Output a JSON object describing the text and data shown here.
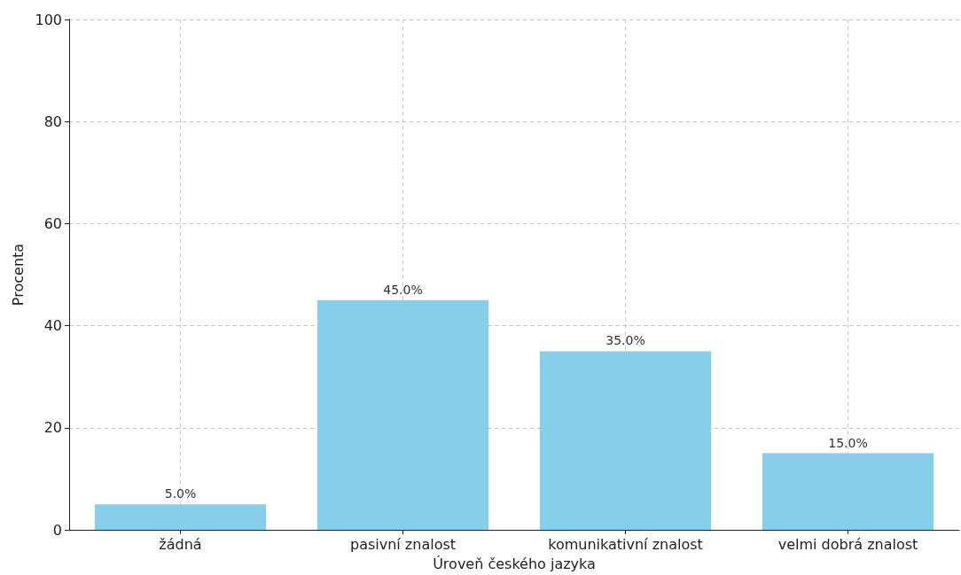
{
  "chart_data": {
    "type": "bar",
    "xlabel": "Úroveň českého jazyka",
    "ylabel": "Procenta",
    "categories": [
      "žádná",
      "pasivní znalost",
      "komunikativní znalost",
      "velmi dobrá znalost"
    ],
    "values": [
      5,
      45,
      35,
      15
    ],
    "color": "#87ceeb",
    "value_labels": [
      "5.0%",
      "45.0%",
      "35.0%",
      "15.0%"
    ],
    "ylim": [
      0,
      100
    ],
    "yticks": [
      0,
      20,
      40,
      60,
      80,
      100
    ],
    "grid": true
  }
}
